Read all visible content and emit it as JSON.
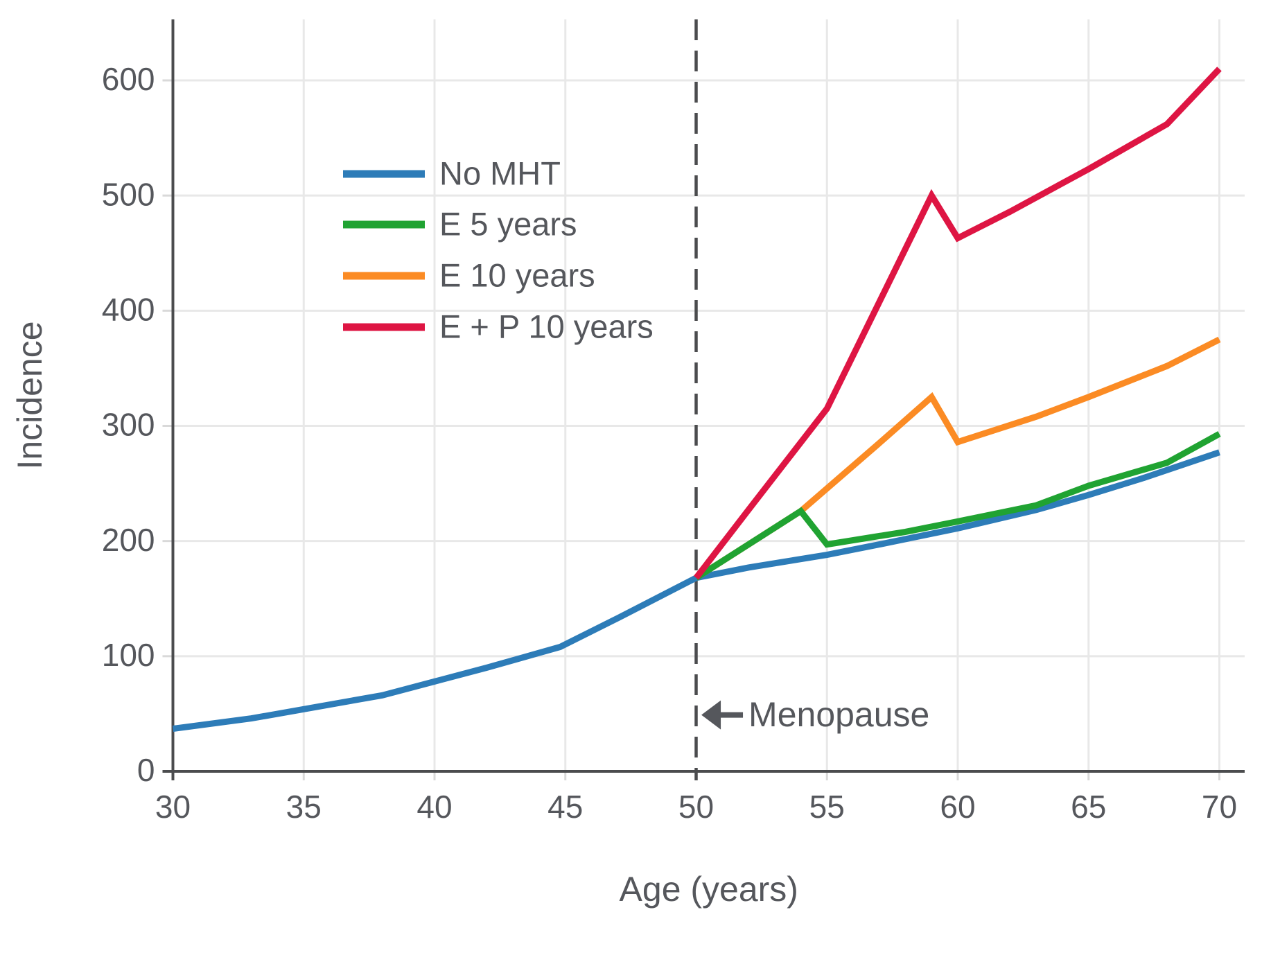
{
  "chart_data": {
    "type": "line",
    "title": "",
    "xlabel": "Age (years)",
    "ylabel": "Incidence",
    "x_ticks": [
      30,
      35,
      40,
      45,
      50,
      55,
      60,
      65,
      70
    ],
    "y_ticks": [
      0,
      100,
      200,
      300,
      400,
      500,
      600
    ],
    "x_range": [
      30,
      70.95
    ],
    "y_range": [
      0,
      651
    ],
    "grid": true,
    "legend_position": "upper-left-inside",
    "vline": {
      "x": 50,
      "style": "dashed"
    },
    "annotation": {
      "text": "Menopause",
      "arrow": "left",
      "arrow_tip_age": 50.2,
      "value": 49
    },
    "series": [
      {
        "name": "No MHT",
        "color": "#2d7cb8",
        "x": [
          30,
          33,
          35,
          38,
          40,
          42,
          44.8,
          47,
          50,
          52,
          55,
          57,
          60,
          63,
          65,
          67,
          70
        ],
        "y": [
          37,
          46,
          54,
          66,
          78,
          90,
          108,
          133,
          168,
          177,
          188,
          197,
          211,
          227,
          240,
          254,
          277
        ]
      },
      {
        "name": "E 5 years",
        "color": "#20a332",
        "x": [
          50,
          54,
          55,
          58,
          60,
          63,
          65,
          68,
          70
        ],
        "y": [
          168,
          226,
          197,
          208,
          217,
          231,
          248,
          268,
          293
        ]
      },
      {
        "name": "E 10 years",
        "color": "#fb8b24",
        "x": [
          50,
          54,
          57,
          59,
          60,
          63,
          65,
          68,
          70
        ],
        "y": [
          168,
          226,
          285,
          325,
          286,
          308,
          325,
          352,
          375
        ]
      },
      {
        "name": "E + P 10 years",
        "color": "#de1543",
        "x": [
          50,
          52,
          55,
          59,
          60,
          62,
          65,
          68,
          70
        ],
        "y": [
          168,
          227,
          315,
          500,
          463,
          486,
          523,
          562,
          610
        ]
      }
    ],
    "draw_order": [
      0,
      2,
      1,
      3
    ],
    "colors": {
      "axis": "#4b4c4e",
      "grid": "#e8e8e8",
      "tick": "#d9d9d9",
      "text": "#55575c",
      "annotation": "#55575c"
    }
  }
}
